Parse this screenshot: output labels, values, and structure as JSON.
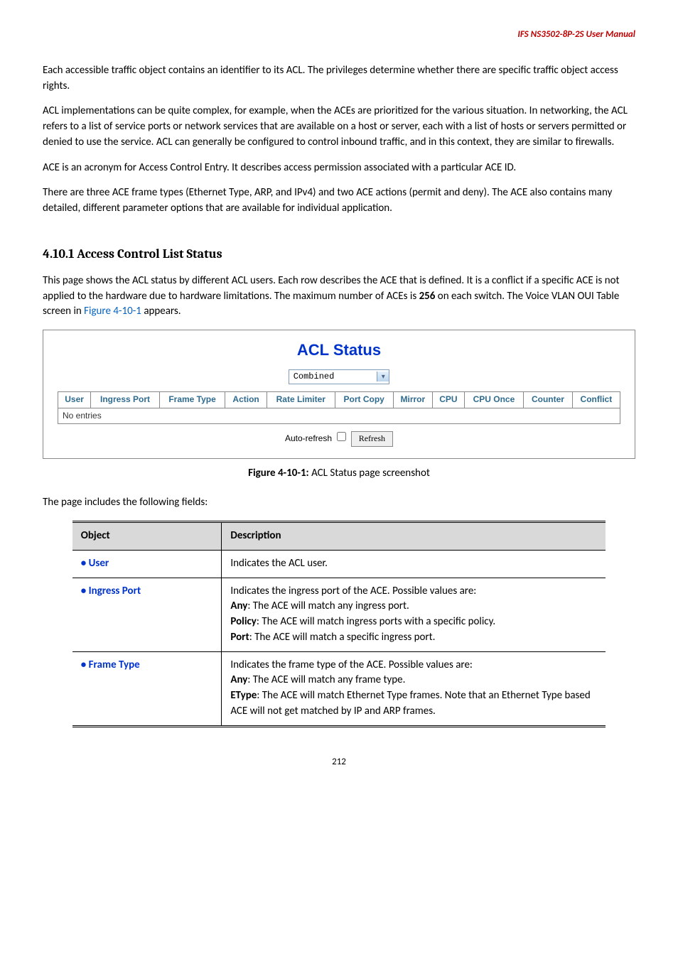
{
  "header": "IFS  NS3502-8P-2S  User  Manual",
  "para1": "Each accessible traffic object contains an identifier to its ACL. The privileges determine whether there are specific traffic object access rights.",
  "para2": "ACL implementations can be quite complex, for example, when the ACEs are prioritized for the various situation. In networking, the ACL refers to a list of service ports or network services that are available on a host or server, each with a list of hosts or servers permitted or denied to use the service. ACL can generally be configured to control inbound traffic, and in this context, they are similar to firewalls.",
  "para3": "ACE is an acronym for Access Control Entry. It describes access permission associated with a particular ACE ID.",
  "para4": "There are three ACE frame types (Ethernet Type, ARP, and IPv4) and two ACE actions (permit and deny). The ACE also contains many detailed, different parameter options that are available for individual application.",
  "sectionHeading": "4.10.1 Access Control List Status",
  "sectionIntroA": "This page shows the ACL status by different ACL users. Each row describes the ACE that is defined. It is a conflict if a specific ACE is not applied to the hardware due to hardware limitations. The maximum number of ACEs is ",
  "aceCount": "256",
  "sectionIntroB": " on each switch. The Voice VLAN OUI Table screen in ",
  "figLink": "Figure 4-10-1",
  "sectionIntroC": " appears.",
  "aclBox": {
    "title": "ACL Status",
    "comboValue": "Combined",
    "columns": [
      "User",
      "Ingress Port",
      "Frame Type",
      "Action",
      "Rate Limiter",
      "Port Copy",
      "Mirror",
      "CPU",
      "CPU Once",
      "Counter",
      "Conflict"
    ],
    "noEntries": "No entries",
    "autoRefresh": "Auto-refresh",
    "refreshBtn": "Refresh"
  },
  "figCaptionBold": "Figure 4-10-1:",
  "figCaptionRest": " ACL Status page screenshot",
  "fieldsIntro": "The page includes the following fields:",
  "table": {
    "head": {
      "object": "Object",
      "description": "Description"
    },
    "rows": [
      {
        "object": "User",
        "desc": "Indicates the ACL user."
      },
      {
        "object": "Ingress Port",
        "lines": [
          "Indicates the ingress port of the ACE. Possible values are:",
          {
            "b": "Any",
            "rest": ": The ACE will match any ingress port."
          },
          {
            "b": "Policy",
            "rest": ": The ACE will match ingress ports with a specific policy."
          },
          {
            "b": "Port",
            "rest": ": The ACE will match a specific ingress port."
          }
        ]
      },
      {
        "object": "Frame Type",
        "lines": [
          "Indicates the frame type of the ACE. Possible values are:",
          {
            "b": "Any",
            "rest": ": The ACE will match any frame type."
          },
          {
            "b": "EType",
            "rest": ": The ACE will match Ethernet Type frames. Note that an Ethernet Type based ACE will not get matched by IP and ARP frames."
          }
        ]
      }
    ]
  },
  "pageNum": "212"
}
